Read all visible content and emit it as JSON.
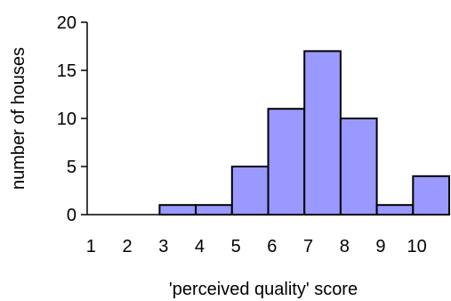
{
  "chart_data": {
    "type": "bar",
    "title": "",
    "xlabel": "'perceived quality' score",
    "ylabel": "number of houses",
    "categories": [
      "1",
      "2",
      "3",
      "4",
      "5",
      "6",
      "7",
      "8",
      "9",
      "10"
    ],
    "values": [
      0,
      0,
      1,
      1,
      5,
      11,
      17,
      10,
      1,
      4
    ],
    "ylim": [
      0,
      20
    ],
    "yticks": [
      "0",
      "5",
      "10",
      "15",
      "20"
    ],
    "grid": false,
    "legend": "none",
    "bar_color": "#9999ff",
    "edge_color": "#000000"
  }
}
